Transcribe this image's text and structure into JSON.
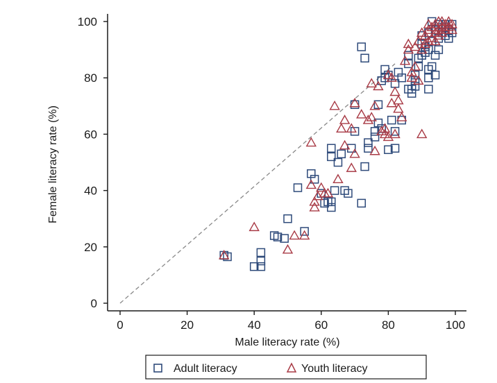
{
  "chart_data": {
    "type": "scatter",
    "xlabel": "Male literacy rate (%)",
    "ylabel": "Female literacy rate (%)",
    "xlim": [
      0,
      100
    ],
    "ylim": [
      0,
      100
    ],
    "x_ticks": [
      "0",
      "20",
      "40",
      "60",
      "80",
      "100"
    ],
    "y_ticks": [
      "0",
      "20",
      "40",
      "60",
      "80",
      "100"
    ],
    "grid": false,
    "legend_position": "bottom",
    "reference_line": {
      "style": "dashed",
      "from": [
        0,
        0
      ],
      "to": [
        82,
        85
      ]
    },
    "series": [
      {
        "name": "Adult literacy",
        "marker": "square",
        "color": "#2e4a7a",
        "points": [
          [
            31,
            17
          ],
          [
            32,
            16.5
          ],
          [
            40,
            13
          ],
          [
            42,
            13
          ],
          [
            42,
            15
          ],
          [
            42,
            18
          ],
          [
            46,
            24
          ],
          [
            47,
            23.5
          ],
          [
            49,
            23
          ],
          [
            50,
            30
          ],
          [
            53,
            41
          ],
          [
            55,
            25.5
          ],
          [
            57,
            46
          ],
          [
            58,
            44
          ],
          [
            60,
            39
          ],
          [
            61,
            35.5
          ],
          [
            62,
            36
          ],
          [
            63,
            34
          ],
          [
            63,
            36
          ],
          [
            64,
            40
          ],
          [
            63,
            52
          ],
          [
            63,
            55
          ],
          [
            65,
            50
          ],
          [
            66,
            53
          ],
          [
            67,
            40
          ],
          [
            68,
            39
          ],
          [
            69,
            55
          ],
          [
            70,
            70.5
          ],
          [
            70,
            61
          ],
          [
            72,
            35.5
          ],
          [
            72,
            91
          ],
          [
            73,
            87
          ],
          [
            73,
            48.5
          ],
          [
            74,
            57
          ],
          [
            74,
            55
          ],
          [
            76,
            61
          ],
          [
            76,
            59
          ],
          [
            77,
            70.5
          ],
          [
            77,
            64
          ],
          [
            78,
            62
          ],
          [
            78,
            79
          ],
          [
            79,
            80
          ],
          [
            79,
            83
          ],
          [
            80,
            81
          ],
          [
            80,
            54.5
          ],
          [
            81,
            65
          ],
          [
            82,
            55
          ],
          [
            82,
            61
          ],
          [
            82,
            78
          ],
          [
            83,
            82
          ],
          [
            84,
            80
          ],
          [
            84,
            65
          ],
          [
            86,
            88
          ],
          [
            86,
            85
          ],
          [
            86,
            76
          ],
          [
            87,
            74.5
          ],
          [
            87,
            76
          ],
          [
            88,
            77
          ],
          [
            88,
            79
          ],
          [
            88,
            81
          ],
          [
            89,
            87
          ],
          [
            89,
            84
          ],
          [
            90,
            92
          ],
          [
            90,
            95
          ],
          [
            90,
            88
          ],
          [
            91,
            89
          ],
          [
            91,
            91
          ],
          [
            92,
            90
          ],
          [
            92,
            80
          ],
          [
            92,
            83
          ],
          [
            92,
            76
          ],
          [
            92,
            96
          ],
          [
            93,
            93
          ],
          [
            93,
            84
          ],
          [
            94,
            97
          ],
          [
            94,
            81
          ],
          [
            94,
            88
          ],
          [
            95,
            94
          ],
          [
            95,
            90
          ],
          [
            96,
            96
          ],
          [
            96,
            98
          ],
          [
            97,
            95
          ],
          [
            97,
            99
          ],
          [
            98,
            97
          ],
          [
            98,
            94
          ],
          [
            99,
            99
          ],
          [
            99,
            96
          ],
          [
            93,
            100
          ],
          [
            95,
            99
          ],
          [
            97,
            98
          ]
        ]
      },
      {
        "name": "Youth literacy",
        "marker": "triangle",
        "color": "#a83a45",
        "points": [
          [
            31,
            17
          ],
          [
            40,
            27
          ],
          [
            50,
            19
          ],
          [
            52,
            24
          ],
          [
            55,
            24
          ],
          [
            57,
            57
          ],
          [
            57,
            42
          ],
          [
            58,
            36
          ],
          [
            58,
            34
          ],
          [
            59,
            38
          ],
          [
            60,
            41
          ],
          [
            61,
            39
          ],
          [
            62,
            39
          ],
          [
            64,
            70
          ],
          [
            65,
            44
          ],
          [
            66,
            62
          ],
          [
            67,
            56
          ],
          [
            67,
            65
          ],
          [
            69,
            48
          ],
          [
            69,
            62
          ],
          [
            70,
            53
          ],
          [
            70,
            71
          ],
          [
            72,
            67
          ],
          [
            74,
            65
          ],
          [
            75,
            78
          ],
          [
            75,
            66
          ],
          [
            76,
            54
          ],
          [
            76,
            70
          ],
          [
            77,
            77
          ],
          [
            78,
            61
          ],
          [
            79,
            60
          ],
          [
            79,
            62
          ],
          [
            80,
            81
          ],
          [
            80,
            59
          ],
          [
            81,
            71
          ],
          [
            81,
            80
          ],
          [
            82,
            60
          ],
          [
            82,
            75
          ],
          [
            83,
            69
          ],
          [
            83,
            72
          ],
          [
            84,
            66
          ],
          [
            85,
            86
          ],
          [
            86,
            90
          ],
          [
            86,
            92
          ],
          [
            87,
            80
          ],
          [
            87,
            82
          ],
          [
            88,
            91
          ],
          [
            88,
            84
          ],
          [
            89,
            79
          ],
          [
            89,
            93
          ],
          [
            90,
            60
          ],
          [
            90,
            90
          ],
          [
            90,
            96
          ],
          [
            91,
            95
          ],
          [
            91,
            92
          ],
          [
            92,
            97
          ],
          [
            92,
            93
          ],
          [
            93,
            94
          ],
          [
            93,
            98
          ],
          [
            94,
            96
          ],
          [
            94,
            99
          ],
          [
            95,
            97
          ],
          [
            95,
            95
          ],
          [
            96,
            98
          ],
          [
            96,
            100
          ],
          [
            97,
            99
          ],
          [
            97,
            97
          ],
          [
            98,
            100
          ],
          [
            98,
            98
          ],
          [
            99,
            99
          ],
          [
            99,
            97
          ],
          [
            92,
            99
          ],
          [
            95,
            100
          ],
          [
            94,
            93
          ],
          [
            96,
            96
          ]
        ]
      }
    ]
  }
}
